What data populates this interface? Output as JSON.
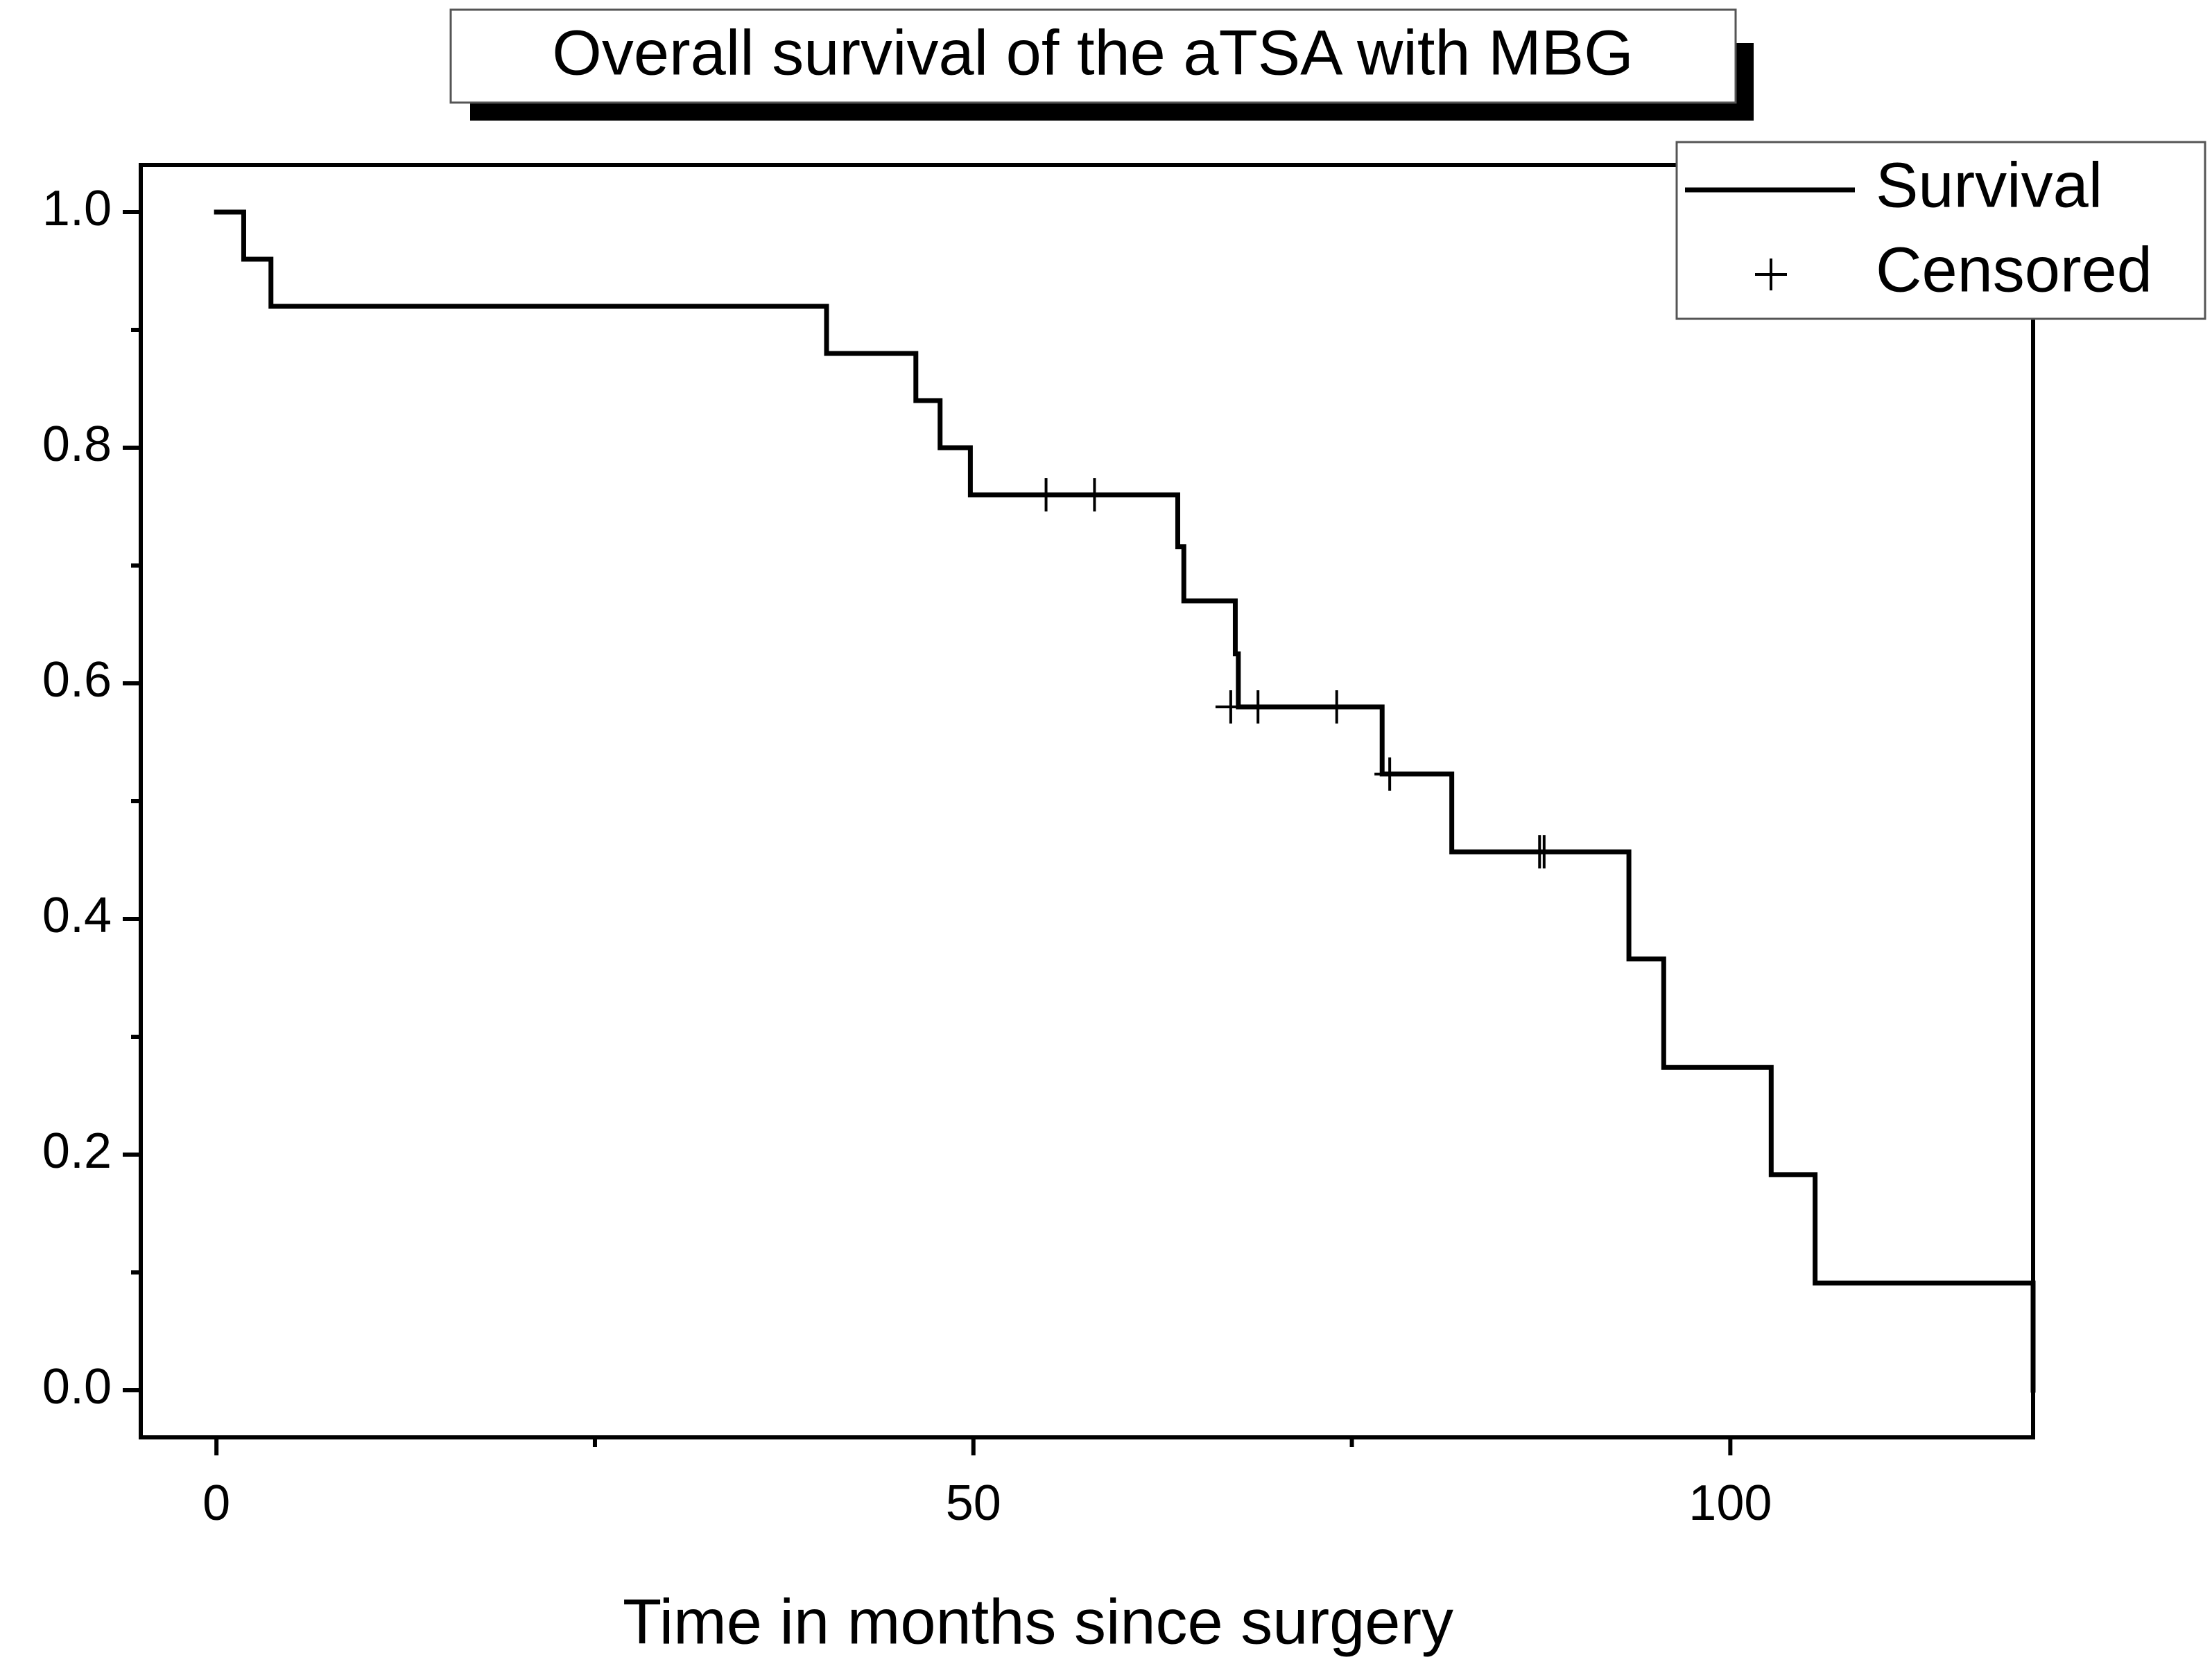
{
  "chart_data": {
    "type": "line",
    "subtype": "kaplan-meier-step",
    "title": "Overall survival of the aTSA with MBG",
    "xlabel": "Time in months since surgery",
    "ylabel": "",
    "xlim": [
      -5,
      120
    ],
    "ylim": [
      -0.04,
      1.04
    ],
    "x_ticks": [
      0,
      50,
      100
    ],
    "x_tick_labels": [
      "0",
      "50",
      "100"
    ],
    "x_minor_ticks": [
      25,
      75
    ],
    "y_ticks": [
      0.0,
      0.2,
      0.4,
      0.6,
      0.8,
      1.0
    ],
    "y_tick_labels": [
      "0.0",
      "0.2",
      "0.4",
      "0.6",
      "0.8",
      "1.0"
    ],
    "y_minor_ticks": [
      0.1,
      0.3,
      0.5,
      0.7,
      0.9
    ],
    "grid": false,
    "legend": {
      "placement": "top-right",
      "entries": [
        {
          "label": "Survival",
          "symbol": "line"
        },
        {
          "label": "Censored",
          "symbol": "plus"
        }
      ]
    },
    "series": [
      {
        "name": "Survival",
        "step_points": [
          [
            0,
            1.0
          ],
          [
            1.8,
            0.96
          ],
          [
            3.6,
            0.92
          ],
          [
            40.3,
            0.88
          ],
          [
            46.2,
            0.84
          ],
          [
            47.8,
            0.8
          ],
          [
            49.8,
            0.76
          ],
          [
            63.5,
            0.716
          ],
          [
            63.9,
            0.67
          ],
          [
            67.3,
            0.625
          ],
          [
            67.5,
            0.58
          ],
          [
            77.0,
            0.523
          ],
          [
            81.6,
            0.457
          ],
          [
            93.3,
            0.366
          ],
          [
            95.6,
            0.274
          ],
          [
            102.7,
            0.183
          ],
          [
            105.6,
            0.091
          ],
          [
            120.0,
            0.0
          ]
        ]
      },
      {
        "name": "Censored",
        "points": [
          [
            54.8,
            0.76
          ],
          [
            58.0,
            0.76
          ],
          [
            67.0,
            0.58
          ],
          [
            68.8,
            0.58
          ],
          [
            74.0,
            0.58
          ],
          [
            77.5,
            0.523
          ],
          [
            87.4,
            0.457
          ],
          [
            87.7,
            0.457
          ]
        ]
      }
    ],
    "colors": {
      "line": "#000000",
      "axes": "#000000",
      "background": "#ffffff"
    }
  }
}
